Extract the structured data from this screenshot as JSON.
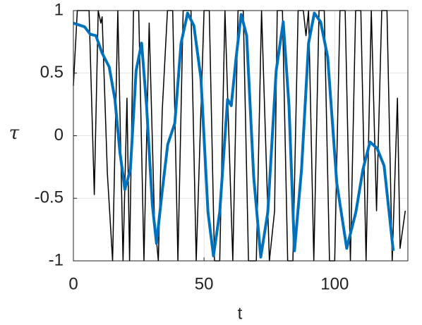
{
  "chart_data": {
    "type": "line",
    "xlabel": "t",
    "ylabel": "τ",
    "xlim": [
      0,
      128
    ],
    "ylim": [
      -1,
      1
    ],
    "xticks": [
      0,
      50,
      100
    ],
    "yticks": [
      -1,
      -0.5,
      0,
      0.5,
      1
    ],
    "grid": true,
    "series": [
      {
        "color": "#000000",
        "x": [
          0,
          1.5,
          6,
          8,
          9.5,
          10.5,
          11,
          13,
          15,
          17,
          19,
          20.5,
          21.5,
          23,
          25,
          27,
          29,
          31,
          32.5,
          34,
          36,
          38,
          40,
          42,
          45,
          47,
          50,
          52,
          54,
          56,
          58,
          61,
          63,
          65,
          67,
          70,
          72,
          75,
          77,
          78,
          80,
          82,
          84,
          86,
          88,
          89,
          90,
          92,
          94,
          96,
          98,
          100,
          102,
          104,
          106,
          108,
          110,
          112,
          114,
          116,
          118,
          120,
          122,
          124,
          125,
          127
        ],
        "values": [
          0.4,
          1,
          1,
          -0.47,
          1,
          0.9,
          0.95,
          -0.3,
          -1,
          1,
          -1,
          0.3,
          -1,
          1,
          1,
          -1,
          0.9,
          -0.65,
          -1,
          0.2,
          1,
          1,
          -1,
          1,
          1,
          -1,
          1,
          1,
          -1,
          -1,
          1,
          -1,
          1,
          1,
          -1,
          -1,
          1,
          -1,
          -0.6,
          1,
          1,
          -1,
          -1,
          1,
          1,
          0.8,
          1,
          -1,
          1,
          1,
          -1,
          -1,
          1,
          1,
          -1,
          1,
          1,
          -1,
          1,
          -0.6,
          1,
          1,
          -1,
          0.3,
          -0.9,
          -0.6
        ]
      },
      {
        "color": "#0072bd",
        "x": [
          0,
          4.3,
          6.5,
          8.6,
          11,
          13.7,
          15.9,
          17.8,
          19.7,
          21.8,
          24,
          26.1,
          28,
          30.2,
          31.8,
          34,
          36.1,
          38.8,
          41.2,
          43.7,
          46.1,
          48.8,
          51.5,
          53.6,
          56,
          59,
          60.4,
          62.3,
          64.2,
          66.3,
          69,
          71.7,
          74.4,
          77.6,
          80.3,
          82.5,
          84.6,
          87.3,
          90,
          92.2,
          94.6,
          97.3,
          100.8,
          104.6,
          108.1,
          110.8,
          113.5,
          116.2,
          118.9,
          122.4
        ],
        "values": [
          0.9,
          0.87,
          0.81,
          0.8,
          0.66,
          0.55,
          0.29,
          -0.13,
          -0.43,
          -0.27,
          0.52,
          0.74,
          0.24,
          -0.55,
          -0.86,
          -0.44,
          -0.07,
          0.1,
          0.74,
          0.98,
          0.88,
          0.46,
          -0.61,
          -0.96,
          -0.61,
          0.29,
          0.24,
          0.63,
          0.97,
          0.8,
          -0.33,
          -0.97,
          -0.61,
          0.52,
          0.91,
          0.24,
          -0.92,
          -0.27,
          0.74,
          0.98,
          0.91,
          0.63,
          -0.38,
          -0.9,
          -0.61,
          -0.27,
          -0.05,
          -0.1,
          -0.24,
          -0.92
        ]
      }
    ]
  }
}
